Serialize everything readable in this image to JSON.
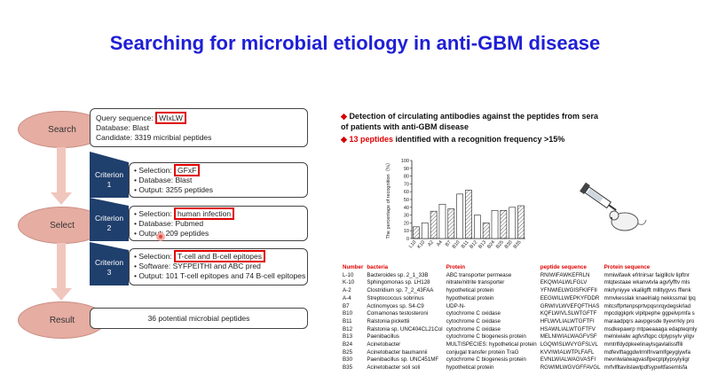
{
  "title": "Searching for microbial etiology in anti-GBM disease",
  "flow": {
    "search": "Search",
    "select": "Select",
    "result": "Result",
    "query_line_prefix": "Query sequence: ",
    "query_seq": "WIxLW",
    "query_database": "Database: Blast",
    "query_candidate": "Candidate: 3319 micribial peptides",
    "criteria": [
      {
        "label": "Criterion",
        "num": "1",
        "sel_prefix": "• Selection: ",
        "sel_value": "GFxF",
        "line2": "• Database: Blast",
        "line3": "• Output: 3255 peptides"
      },
      {
        "label": "Criterion",
        "num": "2",
        "sel_prefix": "• Selection: ",
        "sel_value": "human infection",
        "line2": "• Database: Pubmed",
        "line3": "• Output: 209 peptides"
      },
      {
        "label": "Criterion",
        "num": "3",
        "sel_prefix": "• Selection: ",
        "sel_value": "T-cell and B-cell epitopes",
        "line2": "• Software: SYFPEITHI and ABC pred",
        "line3": "• Output: 101 T-cell epitopes and 74 B-cell epitopes"
      }
    ],
    "result_text": "36 potential microbial peptides"
  },
  "bullets": {
    "b1_line1": "Detection of circulating antibodies against the peptides from sera",
    "b1_line2": "of patients with anti-GBM disease",
    "b2_highlight": "13 peptides",
    "b2_rest": " identified with a recognition frequency >15%"
  },
  "chart_data": {
    "type": "bar",
    "ylabel": "The percentage of recognition（%）",
    "ylim": [
      0,
      100
    ],
    "yticks": [
      "0",
      "10",
      "20",
      "30",
      "40",
      "50",
      "60",
      "70",
      "80",
      "90",
      "100"
    ],
    "categories": [
      "L10",
      "K10",
      "A2",
      "A4",
      "B7",
      "B10",
      "B11",
      "B12",
      "B13",
      "B24",
      "B25",
      "B30",
      "B35"
    ],
    "values": [
      15,
      20,
      35,
      44,
      38,
      57,
      62,
      30,
      20,
      36,
      36,
      40,
      42
    ]
  },
  "table": {
    "headers": [
      "Number",
      "bacteria",
      "Protein",
      "peptide sequence",
      "Protein sequence"
    ],
    "rows": [
      [
        "L-10",
        "Bacteroides sp. 2_1_33B",
        "ABC transporter permease",
        "RNIWIFAWKEFRLN",
        "mmiwifawk efrlnirsar faiglllclv lipftnr"
      ],
      [
        "K-10",
        "Sphingomonas sp. LH128",
        "nitrate/nitrite transporter",
        "EKQWIALWLFGLV",
        "mtqtestaae wkanwtvla agvfyfftv mls"
      ],
      [
        "A-2",
        "Clostridium sp. 7_2_43FAA",
        "hypothetical protein",
        "YFNWIELWGISFKIFFII",
        "mkrlyniyye vkalilgfft mllltygvvs fflenk"
      ],
      [
        "A-4",
        "Streptococcus sobrinus",
        "hypothetical protein",
        "EEGWILLWEPKYFDDR",
        "mmvkesslak knaelrialg nekkssmal lpq"
      ],
      [
        "B7",
        "Actinomyces sp. S4-C9",
        "UDP-N-",
        "GRWIVLWVEFQFTHAS",
        "mitcsffprtenpsprtvpqsnrqydegskrlad"
      ],
      [
        "B10",
        "Comamonas testosteroni",
        "cytochrome C oxidase",
        "KQFLWIVLSLWTGFTF",
        "mpcdqgkprk vlpitpephe ggpelvpmfa s"
      ],
      [
        "B11",
        "Ralstonia pickettii",
        "cytochrome C oxidase",
        "HFLWVLIALWTGFTFI",
        "maraadpqrs aavpgesde tlyevrrkly pro"
      ],
      [
        "B12",
        "Ralstonia sp. UNC404CL21Col",
        "cytochrome C oxidase",
        "HSAWILIALWTGFTFV",
        "msdkepawrp mtpaeaaaga edapteqmly"
      ],
      [
        "B13",
        "Paenibacillus",
        "cytochrome C biogenesis protein",
        "MELNIWIALWAGFVSF",
        "melniwialw agfvsflqpc clplypsylv yilgv"
      ],
      [
        "B24",
        "Acinetobacter",
        "MULTISPECIES: hypothetical protein",
        "LGQWISLWVYGFSLVL",
        "mmtrlfdydpkeelinaylsgavlalissffili"
      ],
      [
        "B25",
        "Acinetobacter baumannii",
        "conjugal transfer protein TraG",
        "KVVIWIALWTPLFAFL",
        "mdfevlftaggdwlrmlfnvamlfgeygiywfa"
      ],
      [
        "B30",
        "Paenibacillus sp. UNC451MF",
        "cytochrome C biogenesis protein",
        "EVNLWIALWAGVASFI",
        "mevnlwialwagvasflpecplplypsylyiigr"
      ],
      [
        "B35",
        "Acinetobacter soli soli",
        "hypothetical protein",
        "RGWIMLWGVGFFAVGL",
        "mrfvlfltavilslawtpdfsypwltfasemlsfa"
      ]
    ]
  },
  "colors": {
    "title": "#1f1fd6",
    "oval": "#e6ada2",
    "criterion": "#1f3f6d",
    "highlight": "#e00000",
    "arrow": "#f0c6bd"
  },
  "icons": {
    "mouse": "mouse-icon",
    "syringe": "syringe-icon"
  }
}
